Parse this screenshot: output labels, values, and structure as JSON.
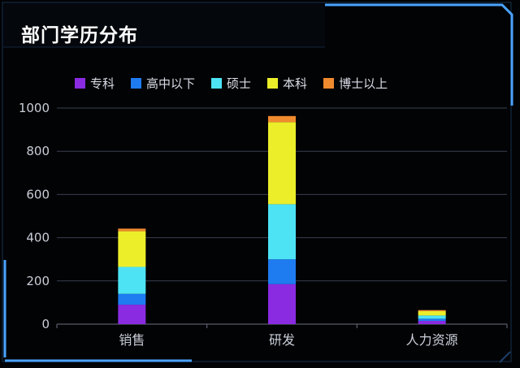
{
  "panel": {
    "title": "部门学历分布"
  },
  "chart_data": {
    "type": "bar",
    "stacked": true,
    "title": "部门学历分布",
    "xlabel": "",
    "ylabel": "",
    "categories": [
      "销售",
      "研发",
      "人力资源"
    ],
    "ylim": [
      0,
      1000
    ],
    "yticks": [
      0,
      200,
      400,
      600,
      800,
      1000
    ],
    "grid": true,
    "legend_position": "top",
    "series": [
      {
        "name": "专科",
        "color": "#8a2be2",
        "values": [
          90,
          185,
          15
        ]
      },
      {
        "name": "高中以下",
        "color": "#1e7bf0",
        "values": [
          50,
          115,
          10
        ]
      },
      {
        "name": "硕士",
        "color": "#4de3f5",
        "values": [
          125,
          255,
          15
        ]
      },
      {
        "name": "本科",
        "color": "#ecee2a",
        "values": [
          165,
          380,
          20
        ]
      },
      {
        "name": "博士以上",
        "color": "#f08a2e",
        "values": [
          12,
          28,
          5
        ]
      }
    ]
  },
  "colors": {
    "background": "#020305",
    "frame_accent": "#4aa3ff",
    "frame_dim": "#1d3d66",
    "grid": "#3a4150",
    "axis": "#6b7280"
  }
}
